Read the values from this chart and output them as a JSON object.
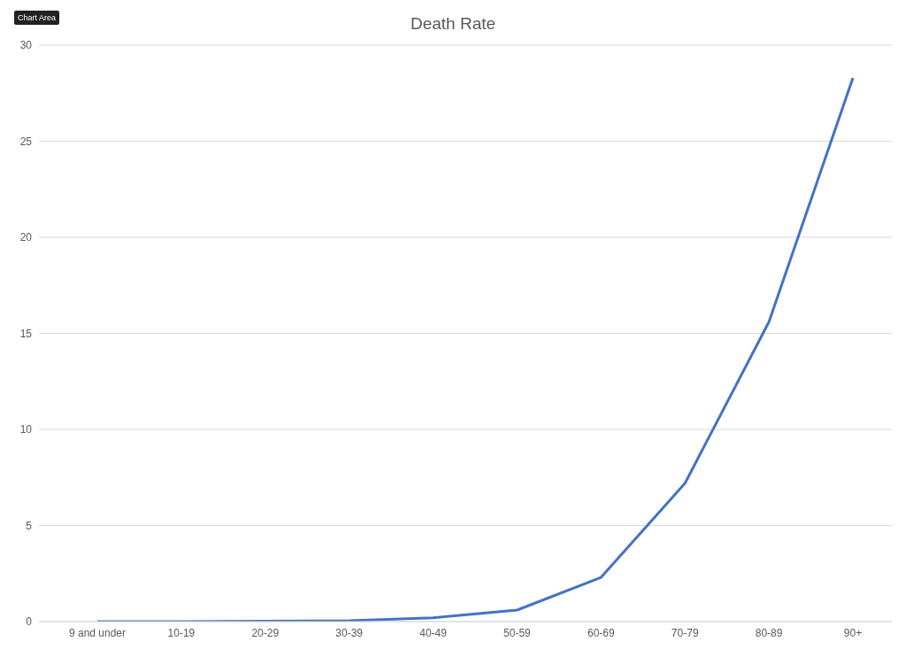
{
  "chart_data": {
    "type": "line",
    "title": "Death Rate",
    "annotations": [
      "Chart Area"
    ],
    "categories": [
      "9 and under",
      "10-19",
      "20-29",
      "30-39",
      "40-49",
      "50-59",
      "60-69",
      "70-79",
      "80-89",
      "90+"
    ],
    "series": [
      {
        "color": "#4472c4",
        "values": [
          0,
          0,
          0.02,
          0.05,
          0.2,
          0.6,
          2.3,
          7.2,
          15.6,
          28.3
        ]
      }
    ],
    "ylim": [
      0,
      30
    ],
    "yticks": [
      0,
      5,
      10,
      15,
      20,
      25,
      30
    ],
    "grid": "y",
    "marker": "none",
    "line_style": "solid"
  }
}
